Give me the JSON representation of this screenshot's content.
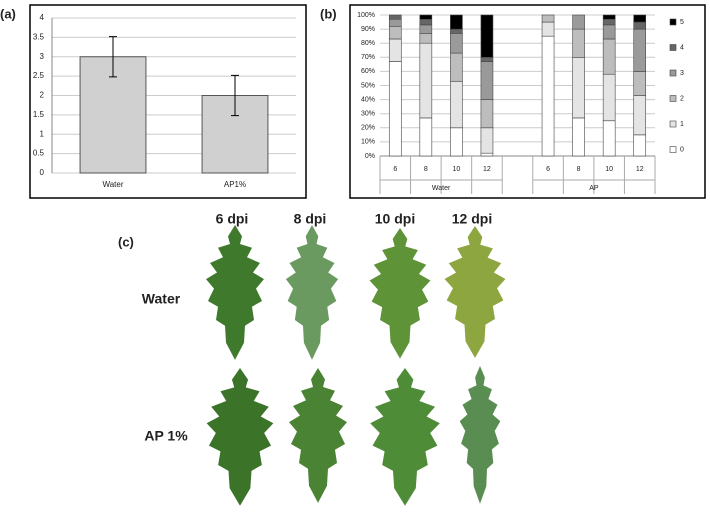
{
  "chart_data": [
    {
      "type": "bar",
      "panel_label": "(a)",
      "categories": [
        "Water",
        "AP1%"
      ],
      "values": [
        3,
        2
      ],
      "errors": [
        0.52,
        0.52
      ],
      "color": "#d0d0d0",
      "ylim": [
        0,
        4
      ],
      "yticks": [
        0,
        0.5,
        1,
        1.5,
        2,
        2.5,
        3,
        3.5,
        4
      ],
      "grid": true
    },
    {
      "type": "stacked_bar",
      "panel_label": "(b)",
      "groups": [
        {
          "name": "Water",
          "categories": [
            "6",
            "8",
            "10",
            "12"
          ]
        },
        {
          "name": "AP",
          "categories": [
            "6",
            "8",
            "10",
            "12"
          ]
        }
      ],
      "series": [
        {
          "name": "0",
          "color": "#ffffff",
          "values": [
            67,
            27,
            20,
            2,
            85,
            27,
            25,
            15
          ]
        },
        {
          "name": "1",
          "color": "#e4e4e4",
          "values": [
            16,
            53,
            33,
            18,
            10,
            43,
            33,
            28
          ]
        },
        {
          "name": "2",
          "color": "#bdbdbd",
          "values": [
            9,
            7,
            20,
            20,
            5,
            20,
            25,
            17
          ]
        },
        {
          "name": "3",
          "color": "#9a9a9a",
          "values": [
            5,
            6,
            14,
            27,
            0,
            10,
            10,
            30
          ]
        },
        {
          "name": "4",
          "color": "#666666",
          "values": [
            3,
            4,
            3,
            3,
            0,
            0,
            4,
            5
          ]
        },
        {
          "name": "5",
          "color": "#000000",
          "values": [
            0,
            3,
            10,
            30,
            0,
            0,
            3,
            5
          ]
        }
      ],
      "ylim": [
        0,
        100
      ],
      "yticks": [
        {
          "value": 0,
          "label": "0%"
        },
        {
          "value": 10,
          "label": "10%"
        },
        {
          "value": 20,
          "label": "20%"
        },
        {
          "value": 30,
          "label": "30%"
        },
        {
          "value": 40,
          "label": "40%"
        },
        {
          "value": 50,
          "label": "50%"
        },
        {
          "value": 60,
          "label": "60%"
        },
        {
          "value": 70,
          "label": "70%"
        },
        {
          "value": 80,
          "label": "80%"
        },
        {
          "value": 90,
          "label": "90%"
        },
        {
          "value": 100,
          "label": "100%"
        }
      ],
      "grid": true
    }
  ],
  "panel_c": {
    "label": "(c)",
    "columns": [
      "6 dpi",
      "8 dpi",
      "10 dpi",
      "12 dpi"
    ],
    "rows": [
      "Water",
      "AP 1%"
    ]
  }
}
